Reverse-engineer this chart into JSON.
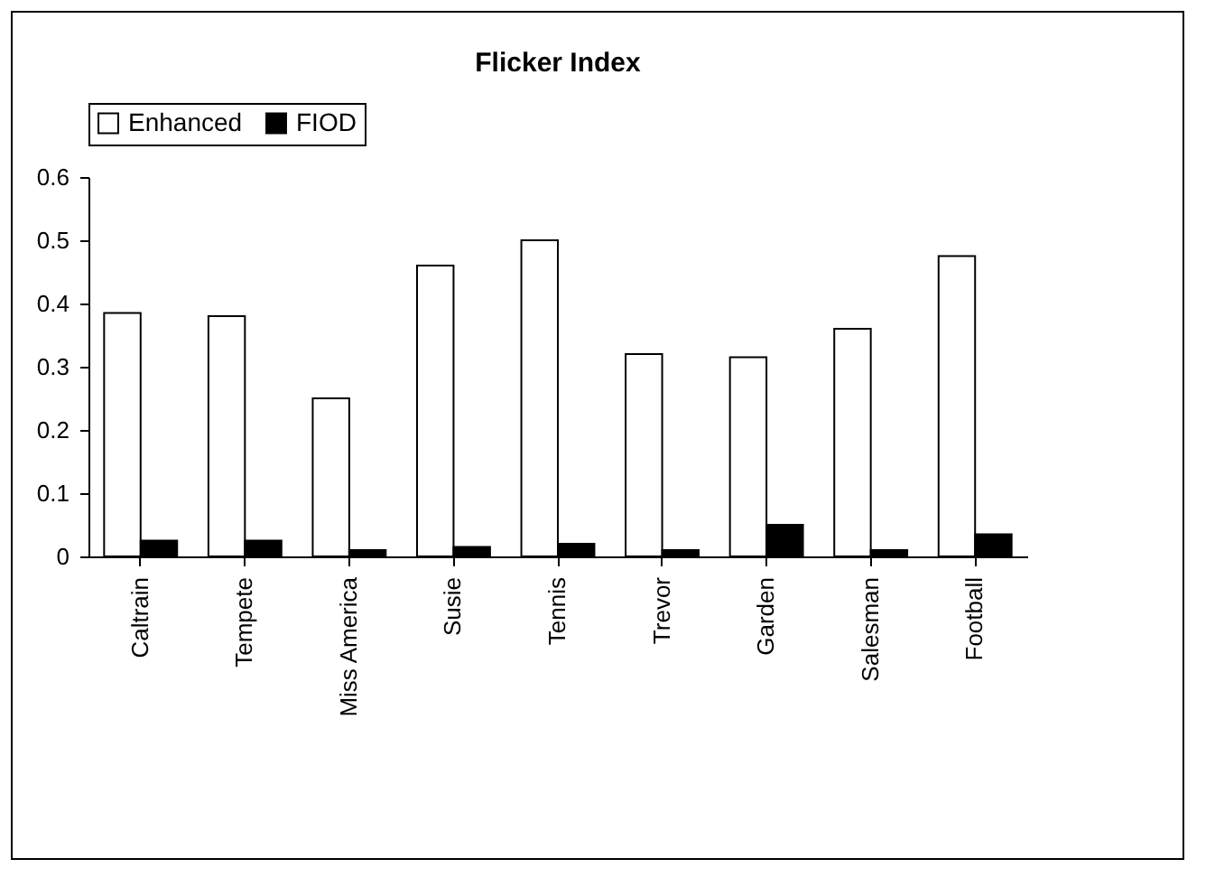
{
  "chart_data": {
    "type": "bar",
    "title": "Flicker Index",
    "categories": [
      "Caltrain",
      "Tempete",
      "Miss America",
      "Susie",
      "Tennis",
      "Trevor",
      "Garden",
      "Salesman",
      "Football"
    ],
    "series": [
      {
        "name": "Enhanced",
        "color": "#ffffff",
        "values": [
          0.385,
          0.38,
          0.25,
          0.46,
          0.5,
          0.32,
          0.315,
          0.36,
          0.475
        ]
      },
      {
        "name": "FIOD",
        "color": "#000000",
        "values": [
          0.025,
          0.025,
          0.01,
          0.015,
          0.02,
          0.01,
          0.05,
          0.01,
          0.035
        ]
      }
    ],
    "ylim": [
      0,
      0.6
    ],
    "yticks": [
      0,
      0.1,
      0.2,
      0.3,
      0.4,
      0.5,
      0.6
    ],
    "grid": false,
    "legend": "top"
  }
}
